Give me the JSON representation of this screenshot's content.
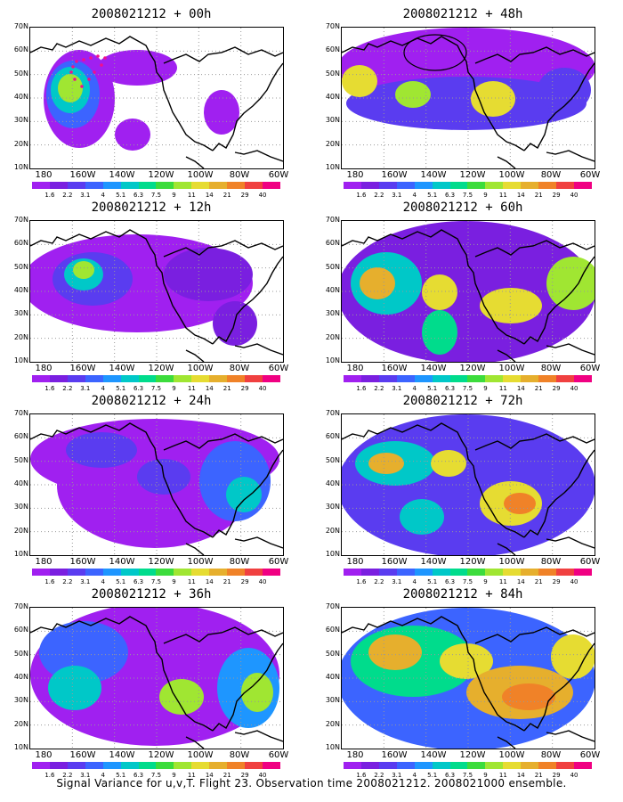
{
  "panels": [
    {
      "title": "2008021212 + 00h"
    },
    {
      "title": "2008021212 + 48h"
    },
    {
      "title": "2008021212 + 12h"
    },
    {
      "title": "2008021212 + 60h"
    },
    {
      "title": "2008021212 + 24h"
    },
    {
      "title": "2008021212 + 72h"
    },
    {
      "title": "2008021212 + 36h"
    },
    {
      "title": "2008021212 + 84h"
    }
  ],
  "lat_labels": [
    "70N",
    "60N",
    "50N",
    "40N",
    "30N",
    "20N",
    "10N"
  ],
  "lon_labels": [
    "180",
    "160W",
    "140W",
    "120W",
    "100W",
    "80W",
    "60W"
  ],
  "colorbar": {
    "labels": [
      "1.6",
      "2.2",
      "3.1",
      "4",
      "5.1",
      "6.3",
      "7.5",
      "9",
      "11",
      "14",
      "21",
      "29",
      "40"
    ],
    "colors": [
      "#a020f0",
      "#7a1fe0",
      "#5a3cf0",
      "#3c64ff",
      "#1e96ff",
      "#00c8c8",
      "#00dc8c",
      "#3cdc3c",
      "#a0e632",
      "#e6dc32",
      "#e6af2d",
      "#f08228",
      "#f04040",
      "#f00082"
    ]
  },
  "footer": "Signal Variance for u,v,T. Flight 23. Observation time 2008021212. 2008021000 ensemble."
}
